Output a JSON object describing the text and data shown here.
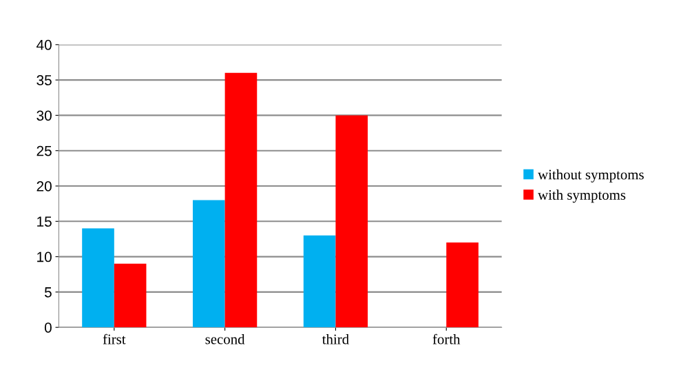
{
  "chart_data": {
    "type": "bar",
    "categories": [
      "first",
      "second",
      "third",
      "forth"
    ],
    "series": [
      {
        "name": "without symptoms",
        "color": "#00b0f0",
        "values": [
          14,
          18,
          13,
          0
        ]
      },
      {
        "name": "with symptoms",
        "color": "#ff0000",
        "values": [
          9,
          36,
          30,
          12
        ]
      }
    ],
    "ylim": [
      0,
      40
    ],
    "yticks": [
      0,
      5,
      10,
      15,
      20,
      25,
      30,
      35,
      40
    ],
    "grid": "y",
    "legend": "right"
  }
}
